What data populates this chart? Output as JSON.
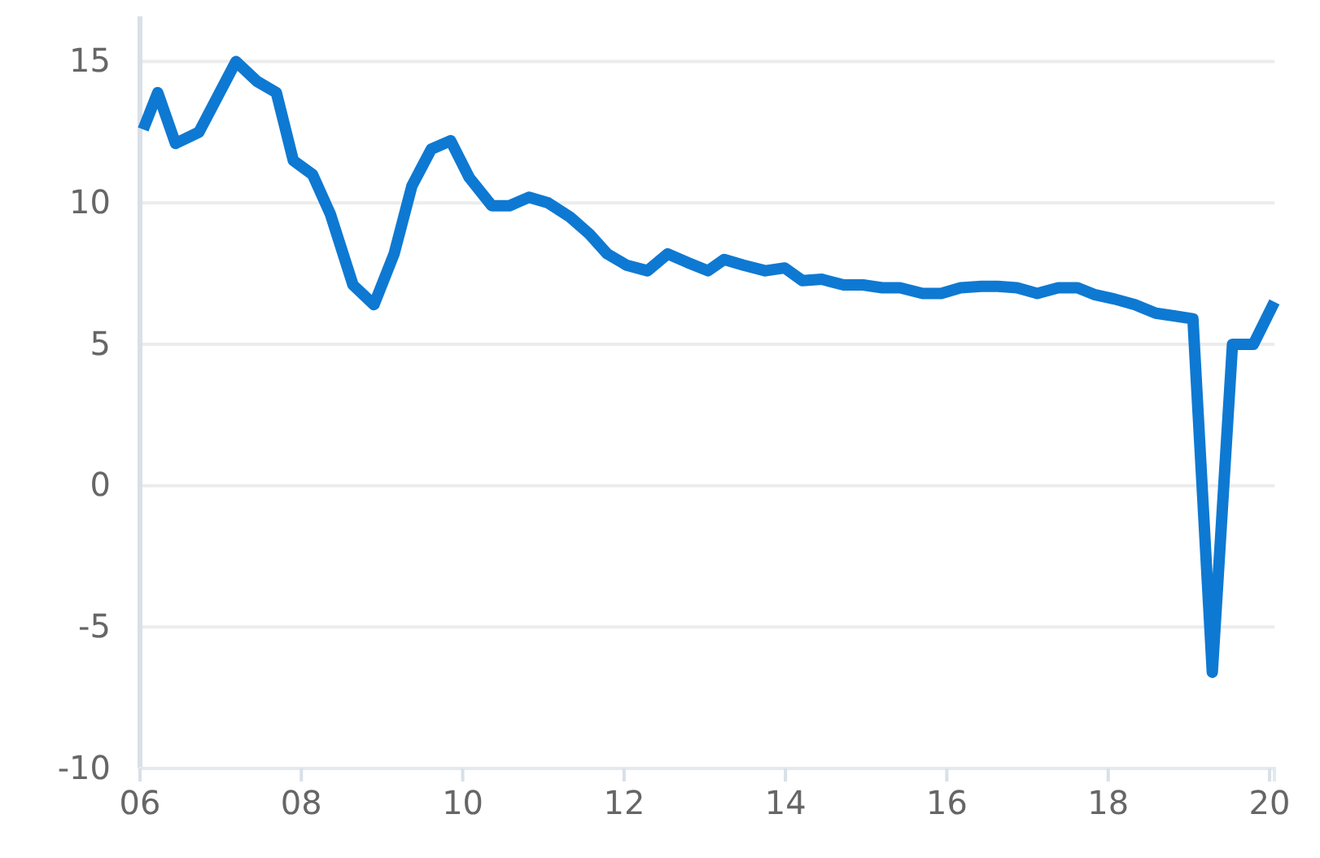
{
  "chart_data": {
    "type": "line",
    "x": [
      2006.04,
      2006.22,
      2006.44,
      2006.73,
      2007.19,
      2007.45,
      2007.69,
      2007.9,
      2008.14,
      2008.36,
      2008.64,
      2008.9,
      2009.15,
      2009.37,
      2009.61,
      2009.85,
      2010.08,
      2010.36,
      2010.58,
      2010.82,
      2011.06,
      2011.33,
      2011.57,
      2011.79,
      2012.03,
      2012.29,
      2012.54,
      2012.78,
      2013.04,
      2013.24,
      2013.48,
      2013.75,
      2013.99,
      2014.21,
      2014.45,
      2014.72,
      2014.96,
      2015.2,
      2015.42,
      2015.7,
      2015.93,
      2016.17,
      2016.43,
      2016.63,
      2016.87,
      2017.12,
      2017.38,
      2017.62,
      2017.84,
      2018.08,
      2018.33,
      2018.59,
      2018.83,
      2019.05,
      2019.29,
      2019.54,
      2019.8,
      2020.06
    ],
    "series": [
      {
        "color": "#0e79d2",
        "values": [
          12.6,
          13.9,
          12.1,
          12.5,
          15.0,
          14.3,
          13.9,
          11.5,
          11.0,
          9.6,
          7.1,
          6.4,
          8.2,
          10.6,
          11.9,
          12.2,
          10.9,
          9.9,
          9.9,
          10.2,
          10.0,
          9.5,
          8.9,
          8.2,
          7.8,
          7.6,
          8.2,
          7.9,
          7.6,
          8.0,
          7.8,
          7.6,
          7.7,
          7.25,
          7.3,
          7.1,
          7.1,
          7.0,
          7.0,
          6.8,
          6.8,
          7.0,
          7.05,
          7.05,
          7.0,
          6.8,
          7.0,
          7.0,
          6.75,
          6.6,
          6.4,
          6.1,
          6.0,
          5.9,
          -6.6,
          5.0,
          5.0,
          6.5
        ]
      }
    ],
    "xlim": [
      2006,
      2020.06
    ],
    "xticks": [
      {
        "value": 2006,
        "label": "06"
      },
      {
        "value": 2008,
        "label": "08"
      },
      {
        "value": 2010,
        "label": "10"
      },
      {
        "value": 2012,
        "label": "12"
      },
      {
        "value": 2014,
        "label": "14"
      },
      {
        "value": 2016,
        "label": "16"
      },
      {
        "value": 2018,
        "label": "18"
      },
      {
        "value": 2020,
        "label": "20"
      }
    ],
    "ylim": [
      -10,
      16.6
    ],
    "yticks": [
      -10,
      -5,
      0,
      5,
      10,
      15
    ],
    "grid": "y",
    "marker": "none",
    "line_style": "solid"
  }
}
